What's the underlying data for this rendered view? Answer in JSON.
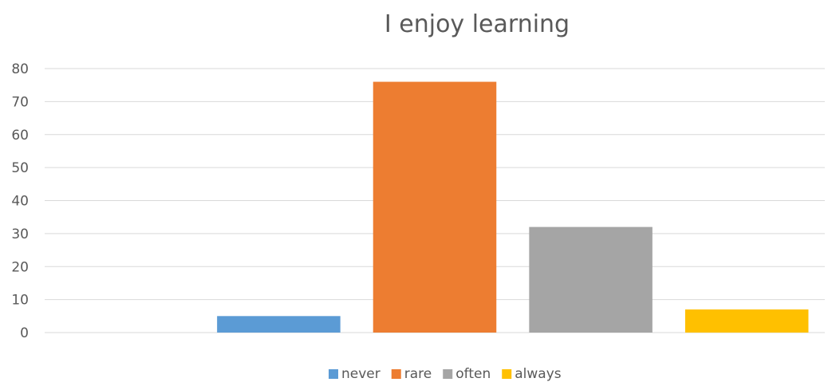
{
  "chart_data": {
    "type": "bar",
    "title": "I enjoy learning",
    "categories": [
      "never",
      "rare",
      "often",
      "always"
    ],
    "values": [
      5,
      76,
      32,
      7
    ],
    "colors": [
      "#5b9bd5",
      "#ed7d31",
      "#a5a5a5",
      "#ffc000"
    ],
    "ylim": [
      0,
      80
    ],
    "yticks": [
      0,
      10,
      20,
      30,
      40,
      50,
      60,
      70,
      80
    ],
    "grid": true,
    "legend": "bottom"
  }
}
